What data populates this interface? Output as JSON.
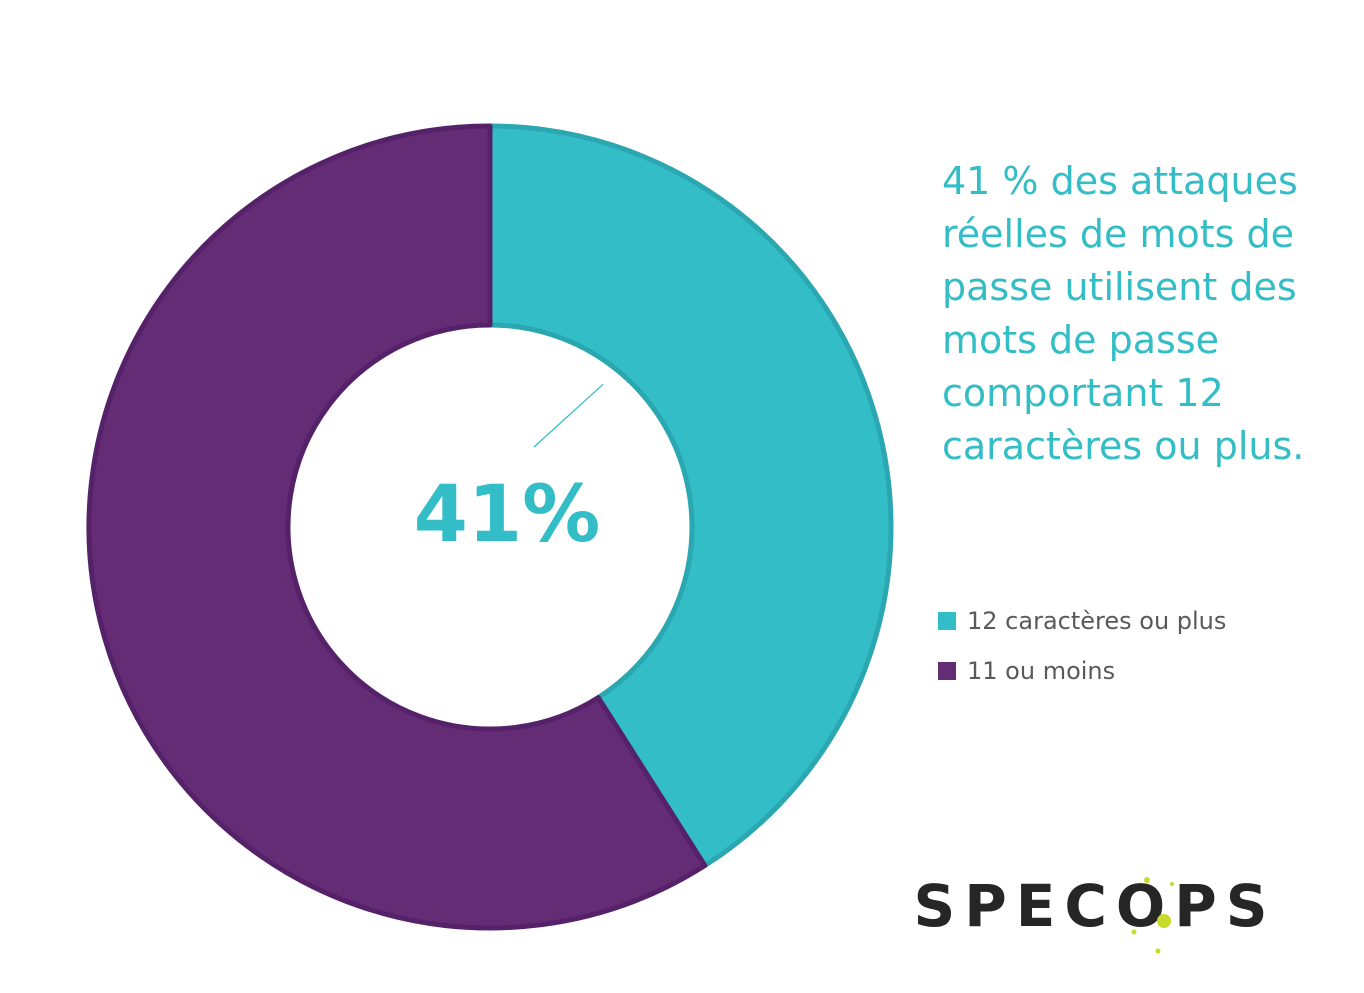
{
  "chart_data": {
    "type": "pie",
    "variant": "donut",
    "categories": [
      "12 caractères ou plus",
      "11 ou moins"
    ],
    "values": [
      41,
      59
    ],
    "colors": [
      "#33BDC6",
      "#632C74"
    ],
    "center_label": "41%",
    "legend_position": "right"
  },
  "callout": {
    "text": "41 % des attaques réelles de mots de passe utilisent des mots de passe comportant 12 caractères ou plus."
  },
  "legend": {
    "items": [
      {
        "label": "12 caractères ou plus",
        "color": "#33BDC6"
      },
      {
        "label": "11 ou moins",
        "color": "#632C74"
      }
    ]
  },
  "logo": {
    "text": "SPECOPS",
    "color": "#262626",
    "accent": "#C8DA2B"
  },
  "colors": {
    "accent_text": "#33BDC6",
    "legend_text": "#595959"
  }
}
